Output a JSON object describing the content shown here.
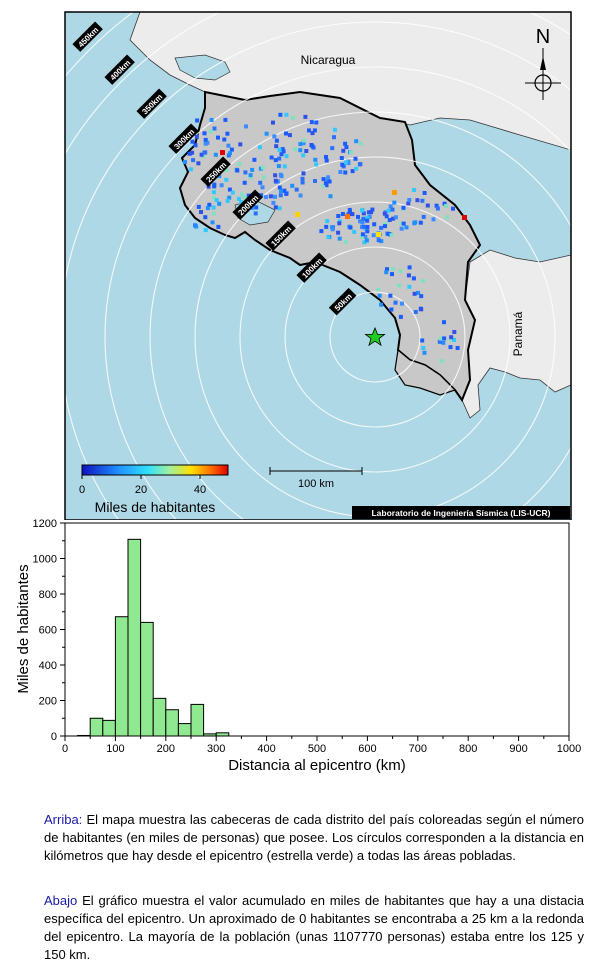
{
  "map": {
    "countries": {
      "nicaragua": "Nicaragua",
      "panama": "Panamá"
    },
    "north_label": "N",
    "ring_labels": [
      "450km",
      "400km",
      "350km",
      "300km",
      "250km",
      "200km",
      "150km",
      "100km",
      "50km"
    ],
    "scale_bar_label": "100 km",
    "colorbar": {
      "ticks": [
        "0",
        "20",
        "40"
      ],
      "label": "Miles de habitantes"
    },
    "credit": "Laboratorio de Ingeniería Sísmica (LIS-UCR)",
    "colors": {
      "sea": "#aed8e6",
      "land_other": "#ececec",
      "land_cr": "#c8c8c8",
      "epicenter": "#22cc22"
    }
  },
  "chart_data": {
    "type": "bar",
    "xlabel": "Distancia al epicentro (km)",
    "ylabel": "Miles de habitantes",
    "xlim": [
      0,
      1000
    ],
    "ylim": [
      0,
      1200
    ],
    "x_ticks": [
      "0",
      "100",
      "200",
      "300",
      "400",
      "500",
      "600",
      "700",
      "800",
      "900",
      "1000"
    ],
    "y_ticks": [
      "0",
      "200",
      "400",
      "600",
      "800",
      "1000",
      "1200"
    ],
    "bin_width_km": 25,
    "bins": [
      {
        "start": 25,
        "value": 3
      },
      {
        "start": 50,
        "value": 100
      },
      {
        "start": 75,
        "value": 88
      },
      {
        "start": 100,
        "value": 672
      },
      {
        "start": 125,
        "value": 1108
      },
      {
        "start": 150,
        "value": 640
      },
      {
        "start": 175,
        "value": 212
      },
      {
        "start": 200,
        "value": 148
      },
      {
        "start": 225,
        "value": 70
      },
      {
        "start": 250,
        "value": 178
      },
      {
        "start": 275,
        "value": 12
      },
      {
        "start": 300,
        "value": 18
      }
    ],
    "bar_color": "#90e890"
  },
  "captions": {
    "top_lead": "Arriba:",
    "top_text": " El mapa muestra las cabeceras de cada distrito del país coloreadas según el número de habitantes (en miles de personas) que posee.  Los círculos corresponden a la distancia en kilómetros que hay desde el epicentro (estrella verde) a todas las áreas pobladas.",
    "bottom_lead": "Abajo",
    "bottom_text": " El gráfico muestra el valor acumulado en miles de habitantes que hay a una distacia específica del epicentro.  Un aproximado de 0 habitantes se encontraba a 25 km a la redonda del epicentro.  La mayoría de la población (unas 1107770 personas) estaba entre los 125 y 150 km."
  }
}
